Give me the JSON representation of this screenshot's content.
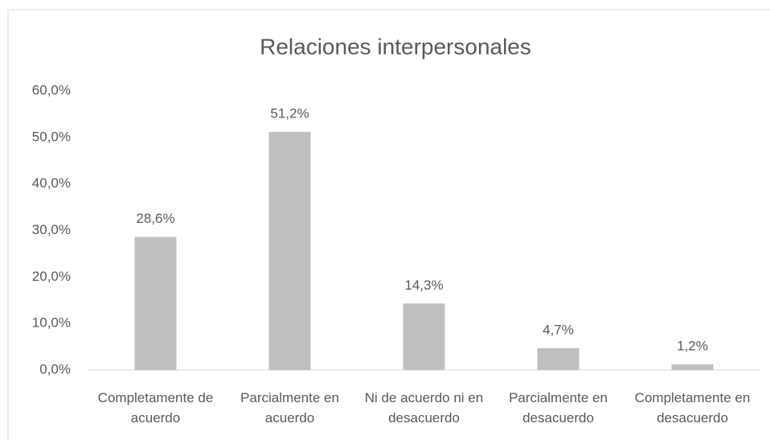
{
  "chart_data": {
    "type": "bar",
    "title": "Relaciones interpersonales",
    "categories": [
      "Completamente de acuerdo",
      "Parcialmente en acuerdo",
      "Ni de acuerdo ni en desacuerdo",
      "Parcialmente en desacuerdo",
      "Completamente en desacuerdo"
    ],
    "values": [
      28.6,
      51.2,
      14.3,
      4.7,
      1.2
    ],
    "value_labels": [
      "28,6%",
      "51,2%",
      "14,3%",
      "4,7%",
      "1,2%"
    ],
    "color": "#bfbfbf",
    "ylim": [
      0,
      60
    ],
    "yticks": [
      {
        "value": 0,
        "label": "0,0%"
      },
      {
        "value": 10,
        "label": "10,0%"
      },
      {
        "value": 20,
        "label": "20,0%"
      },
      {
        "value": 30,
        "label": "30,0%"
      },
      {
        "value": 40,
        "label": "40,0%"
      },
      {
        "value": 50,
        "label": "50,0%"
      },
      {
        "value": 60,
        "label": "60,0%"
      }
    ],
    "grid": false
  }
}
